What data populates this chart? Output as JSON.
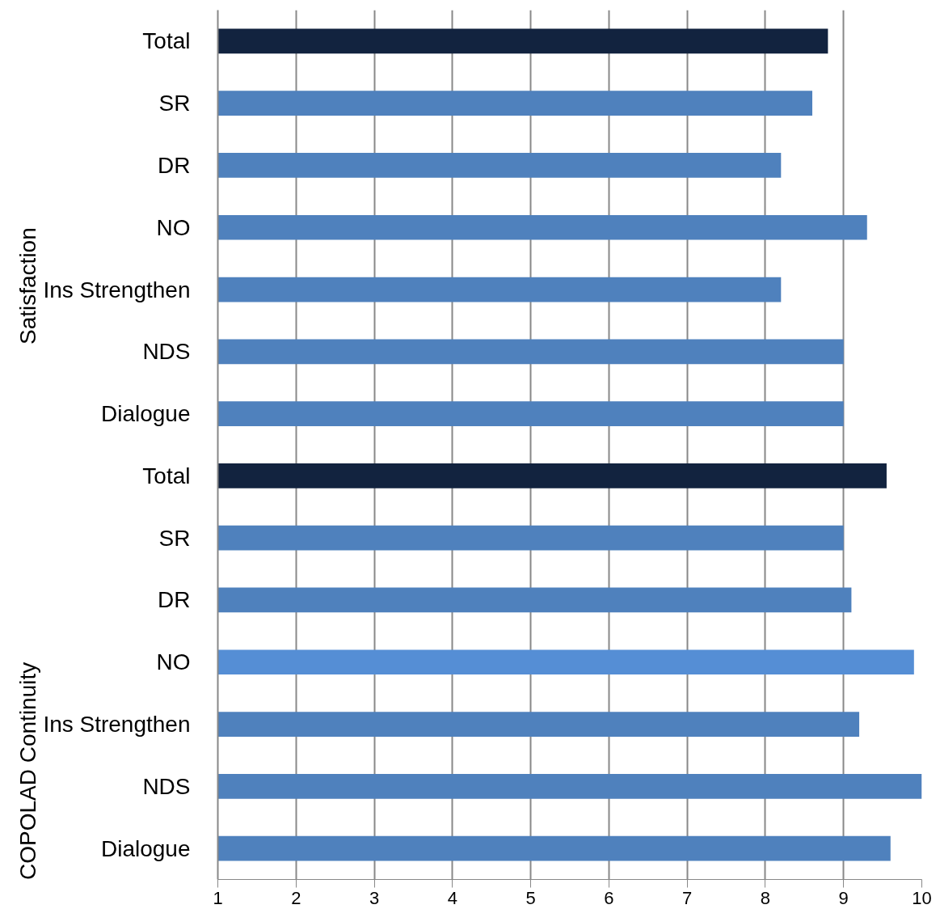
{
  "chart_data": {
    "type": "bar",
    "orientation": "horizontal",
    "categories": [
      "Total",
      "SR",
      "DR",
      "NO",
      "Ins Strengthen",
      "NDS",
      "Dialogue",
      "Total",
      "SR",
      "DR",
      "NO",
      "Ins Strengthen",
      "NDS",
      "Dialogue"
    ],
    "values": [
      8.8,
      8.6,
      8.2,
      9.3,
      8.2,
      9.0,
      9.0,
      9.55,
      9.0,
      9.1,
      9.9,
      9.2,
      10,
      9.6
    ],
    "colors": [
      "#12233f",
      "#4f81bd",
      "#4f81bd",
      "#4f81bd",
      "#4f81bd",
      "#4f81bd",
      "#4f81bd",
      "#12233f",
      "#4f81bd",
      "#4f81bd",
      "#558ed5",
      "#4f81bd",
      "#4f81bd",
      "#4f81bd"
    ],
    "xlim": [
      1,
      10
    ],
    "xticks": [
      1,
      2,
      3,
      4,
      5,
      6,
      7,
      8,
      9,
      10
    ],
    "grid": "x",
    "annotations": [
      "Satisfaction",
      "COPOLAD Continuity"
    ]
  }
}
